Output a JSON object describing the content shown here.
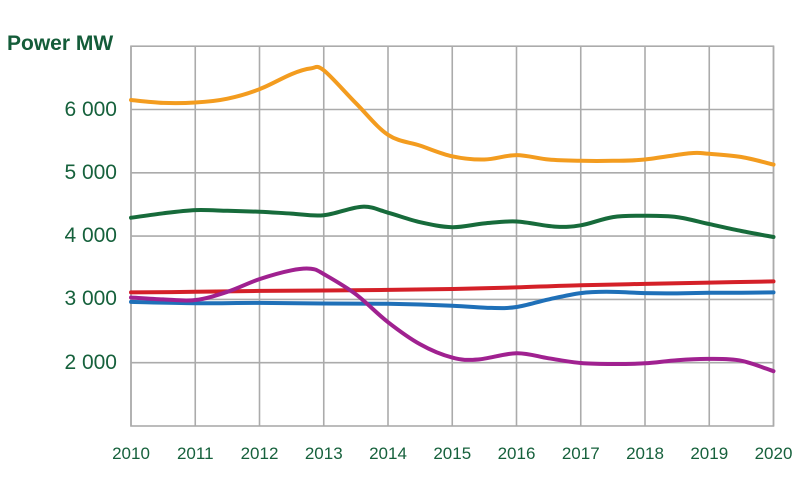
{
  "page": {
    "background_color": "#FFFFFF"
  },
  "chart_data": {
    "type": "line",
    "title": "",
    "ylabel": "Power MW",
    "xlabel": "",
    "xlim": [
      2010,
      2020
    ],
    "ylim": [
      1000,
      7000
    ],
    "grid": true,
    "legend_position": "none",
    "text_color": "#16613C",
    "title_color": "#145C39",
    "grid_color": "#ABABAB",
    "x_ticks": [
      {
        "value": 2010,
        "label": "2010"
      },
      {
        "value": 2011,
        "label": "2011"
      },
      {
        "value": 2012,
        "label": "2012"
      },
      {
        "value": 2013,
        "label": "2013"
      },
      {
        "value": 2014,
        "label": "2014"
      },
      {
        "value": 2015,
        "label": "2015"
      },
      {
        "value": 2016,
        "label": "2016"
      },
      {
        "value": 2017,
        "label": "2017"
      },
      {
        "value": 2018,
        "label": "2018"
      },
      {
        "value": 2019,
        "label": "2019"
      },
      {
        "value": 2020,
        "label": "2020"
      }
    ],
    "y_ticks": [
      {
        "value": 6000,
        "label": "6 000"
      },
      {
        "value": 5000,
        "label": "5 000"
      },
      {
        "value": 4000,
        "label": "4 000"
      },
      {
        "value": 3000,
        "label": "3 000"
      },
      {
        "value": 2000,
        "label": "2 000"
      }
    ],
    "series": [
      {
        "name": "orange-line",
        "color": "#F39C1F",
        "points": [
          [
            2010,
            6150
          ],
          [
            2010.5,
            6105
          ],
          [
            2011,
            6110
          ],
          [
            2011.5,
            6170
          ],
          [
            2012,
            6320
          ],
          [
            2012.5,
            6560
          ],
          [
            2012.8,
            6650
          ],
          [
            2013,
            6620
          ],
          [
            2013.5,
            6100
          ],
          [
            2014,
            5600
          ],
          [
            2014.5,
            5430
          ],
          [
            2015,
            5260
          ],
          [
            2015.5,
            5210
          ],
          [
            2016,
            5280
          ],
          [
            2016.5,
            5210
          ],
          [
            2017,
            5190
          ],
          [
            2017.5,
            5190
          ],
          [
            2018,
            5210
          ],
          [
            2018.7,
            5310
          ],
          [
            2019,
            5300
          ],
          [
            2019.5,
            5250
          ],
          [
            2020,
            5130
          ]
        ]
      },
      {
        "name": "dark-green-line",
        "color": "#176B3B",
        "points": [
          [
            2010,
            4290
          ],
          [
            2010.5,
            4360
          ],
          [
            2011,
            4410
          ],
          [
            2011.5,
            4400
          ],
          [
            2012,
            4385
          ],
          [
            2012.5,
            4355
          ],
          [
            2013,
            4330
          ],
          [
            2013.6,
            4465
          ],
          [
            2014,
            4370
          ],
          [
            2014.5,
            4220
          ],
          [
            2015,
            4140
          ],
          [
            2015.5,
            4200
          ],
          [
            2016,
            4230
          ],
          [
            2016.6,
            4150
          ],
          [
            2017,
            4170
          ],
          [
            2017.5,
            4300
          ],
          [
            2018,
            4320
          ],
          [
            2018.5,
            4300
          ],
          [
            2019,
            4190
          ],
          [
            2019.5,
            4080
          ],
          [
            2020,
            3985
          ]
        ]
      },
      {
        "name": "blue-line",
        "color": "#1F70B8",
        "points": [
          [
            2010,
            2960
          ],
          [
            2011,
            2940
          ],
          [
            2012,
            2945
          ],
          [
            2013,
            2935
          ],
          [
            2014,
            2930
          ],
          [
            2015,
            2900
          ],
          [
            2015.6,
            2865
          ],
          [
            2016,
            2880
          ],
          [
            2016.5,
            3000
          ],
          [
            2017,
            3100
          ],
          [
            2017.4,
            3120
          ],
          [
            2018,
            3100
          ],
          [
            2018.5,
            3095
          ],
          [
            2019,
            3105
          ],
          [
            2019.5,
            3105
          ],
          [
            2020,
            3110
          ]
        ]
      },
      {
        "name": "red-line",
        "color": "#D42028",
        "points": [
          [
            2010,
            3110
          ],
          [
            2011,
            3120
          ],
          [
            2012,
            3135
          ],
          [
            2013,
            3140
          ],
          [
            2014,
            3150
          ],
          [
            2015,
            3165
          ],
          [
            2016,
            3190
          ],
          [
            2017,
            3225
          ],
          [
            2018,
            3245
          ],
          [
            2019,
            3265
          ],
          [
            2020,
            3285
          ]
        ]
      },
      {
        "name": "purple-line",
        "color": "#A02190",
        "points": [
          [
            2010,
            3030
          ],
          [
            2010.5,
            3000
          ],
          [
            2011,
            2990
          ],
          [
            2011.5,
            3120
          ],
          [
            2012,
            3320
          ],
          [
            2012.5,
            3460
          ],
          [
            2012.8,
            3485
          ],
          [
            2013,
            3400
          ],
          [
            2013.5,
            3080
          ],
          [
            2014,
            2640
          ],
          [
            2014.5,
            2290
          ],
          [
            2015,
            2080
          ],
          [
            2015.4,
            2050
          ],
          [
            2016,
            2150
          ],
          [
            2016.5,
            2070
          ],
          [
            2017,
            1995
          ],
          [
            2017.5,
            1980
          ],
          [
            2018,
            1990
          ],
          [
            2018.5,
            2040
          ],
          [
            2019,
            2060
          ],
          [
            2019.5,
            2030
          ],
          [
            2020,
            1865
          ]
        ]
      }
    ]
  }
}
